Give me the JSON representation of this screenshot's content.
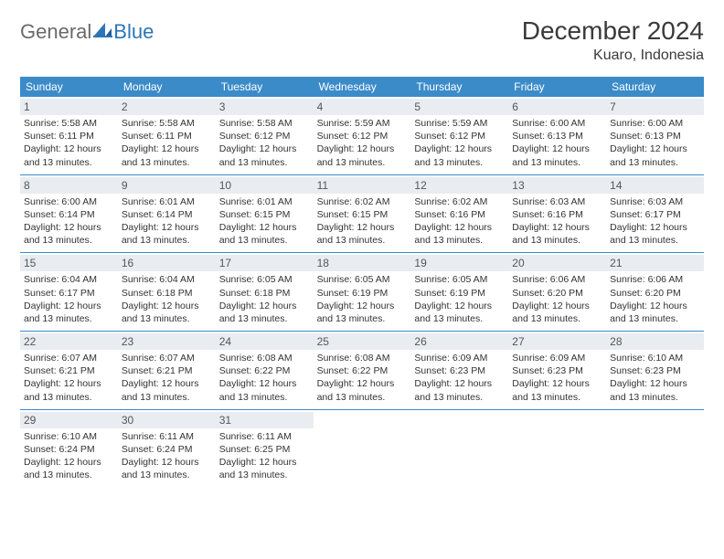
{
  "logo": {
    "word1": "General",
    "word2": "Blue"
  },
  "title": "December 2024",
  "location": "Kuaro, Indonesia",
  "colors": {
    "header_bg": "#3b8bc9",
    "header_text": "#ffffff",
    "daynum_bg": "#e9edf1",
    "border": "#3b8bc9",
    "logo_gray": "#6a6a6a",
    "logo_blue": "#2e75b6"
  },
  "weekdays": [
    "Sunday",
    "Monday",
    "Tuesday",
    "Wednesday",
    "Thursday",
    "Friday",
    "Saturday"
  ],
  "weeks": [
    [
      {
        "num": "1",
        "sunrise": "5:58 AM",
        "sunset": "6:11 PM",
        "daylight": "12 hours and 13 minutes."
      },
      {
        "num": "2",
        "sunrise": "5:58 AM",
        "sunset": "6:11 PM",
        "daylight": "12 hours and 13 minutes."
      },
      {
        "num": "3",
        "sunrise": "5:58 AM",
        "sunset": "6:12 PM",
        "daylight": "12 hours and 13 minutes."
      },
      {
        "num": "4",
        "sunrise": "5:59 AM",
        "sunset": "6:12 PM",
        "daylight": "12 hours and 13 minutes."
      },
      {
        "num": "5",
        "sunrise": "5:59 AM",
        "sunset": "6:12 PM",
        "daylight": "12 hours and 13 minutes."
      },
      {
        "num": "6",
        "sunrise": "6:00 AM",
        "sunset": "6:13 PM",
        "daylight": "12 hours and 13 minutes."
      },
      {
        "num": "7",
        "sunrise": "6:00 AM",
        "sunset": "6:13 PM",
        "daylight": "12 hours and 13 minutes."
      }
    ],
    [
      {
        "num": "8",
        "sunrise": "6:00 AM",
        "sunset": "6:14 PM",
        "daylight": "12 hours and 13 minutes."
      },
      {
        "num": "9",
        "sunrise": "6:01 AM",
        "sunset": "6:14 PM",
        "daylight": "12 hours and 13 minutes."
      },
      {
        "num": "10",
        "sunrise": "6:01 AM",
        "sunset": "6:15 PM",
        "daylight": "12 hours and 13 minutes."
      },
      {
        "num": "11",
        "sunrise": "6:02 AM",
        "sunset": "6:15 PM",
        "daylight": "12 hours and 13 minutes."
      },
      {
        "num": "12",
        "sunrise": "6:02 AM",
        "sunset": "6:16 PM",
        "daylight": "12 hours and 13 minutes."
      },
      {
        "num": "13",
        "sunrise": "6:03 AM",
        "sunset": "6:16 PM",
        "daylight": "12 hours and 13 minutes."
      },
      {
        "num": "14",
        "sunrise": "6:03 AM",
        "sunset": "6:17 PM",
        "daylight": "12 hours and 13 minutes."
      }
    ],
    [
      {
        "num": "15",
        "sunrise": "6:04 AM",
        "sunset": "6:17 PM",
        "daylight": "12 hours and 13 minutes."
      },
      {
        "num": "16",
        "sunrise": "6:04 AM",
        "sunset": "6:18 PM",
        "daylight": "12 hours and 13 minutes."
      },
      {
        "num": "17",
        "sunrise": "6:05 AM",
        "sunset": "6:18 PM",
        "daylight": "12 hours and 13 minutes."
      },
      {
        "num": "18",
        "sunrise": "6:05 AM",
        "sunset": "6:19 PM",
        "daylight": "12 hours and 13 minutes."
      },
      {
        "num": "19",
        "sunrise": "6:05 AM",
        "sunset": "6:19 PM",
        "daylight": "12 hours and 13 minutes."
      },
      {
        "num": "20",
        "sunrise": "6:06 AM",
        "sunset": "6:20 PM",
        "daylight": "12 hours and 13 minutes."
      },
      {
        "num": "21",
        "sunrise": "6:06 AM",
        "sunset": "6:20 PM",
        "daylight": "12 hours and 13 minutes."
      }
    ],
    [
      {
        "num": "22",
        "sunrise": "6:07 AM",
        "sunset": "6:21 PM",
        "daylight": "12 hours and 13 minutes."
      },
      {
        "num": "23",
        "sunrise": "6:07 AM",
        "sunset": "6:21 PM",
        "daylight": "12 hours and 13 minutes."
      },
      {
        "num": "24",
        "sunrise": "6:08 AM",
        "sunset": "6:22 PM",
        "daylight": "12 hours and 13 minutes."
      },
      {
        "num": "25",
        "sunrise": "6:08 AM",
        "sunset": "6:22 PM",
        "daylight": "12 hours and 13 minutes."
      },
      {
        "num": "26",
        "sunrise": "6:09 AM",
        "sunset": "6:23 PM",
        "daylight": "12 hours and 13 minutes."
      },
      {
        "num": "27",
        "sunrise": "6:09 AM",
        "sunset": "6:23 PM",
        "daylight": "12 hours and 13 minutes."
      },
      {
        "num": "28",
        "sunrise": "6:10 AM",
        "sunset": "6:23 PM",
        "daylight": "12 hours and 13 minutes."
      }
    ],
    [
      {
        "num": "29",
        "sunrise": "6:10 AM",
        "sunset": "6:24 PM",
        "daylight": "12 hours and 13 minutes."
      },
      {
        "num": "30",
        "sunrise": "6:11 AM",
        "sunset": "6:24 PM",
        "daylight": "12 hours and 13 minutes."
      },
      {
        "num": "31",
        "sunrise": "6:11 AM",
        "sunset": "6:25 PM",
        "daylight": "12 hours and 13 minutes."
      },
      null,
      null,
      null,
      null
    ]
  ],
  "labels": {
    "sunrise": "Sunrise:",
    "sunset": "Sunset:",
    "daylight": "Daylight:"
  }
}
